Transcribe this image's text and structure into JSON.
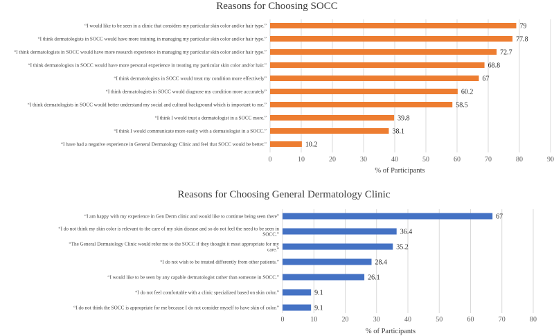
{
  "chart_data": [
    {
      "type": "bar",
      "orientation": "horizontal",
      "title": "Reasons for Choosing SOCC",
      "xlabel": "% of Participants",
      "ylabel": "",
      "xlim": [
        0,
        90
      ],
      "ticks": [
        0,
        10,
        20,
        30,
        40,
        50,
        60,
        70,
        80,
        90
      ],
      "grid": true,
      "color": "#ED7D31",
      "categories": [
        "“I would like to be seen in a clinic that considers my particular skin color and/or hair type.”",
        "“I think dermatologists in SOCC would have more training in managing my particular skin color and/or hair type.”",
        "“I think dermatologists in SOCC would have more research experience in managing my particular skin color and/or hair type.”",
        "“I think dermatologists in SOCC would have more personal experience in treating my particular skin color and/or hair.”",
        "“I think dermatologists in SOCC would treat my condition more effectively”",
        "“I think dermatologists in SOCC would diagnose my condition more accurately”",
        "“I think dermatologists in SOCC would better understand my social and cultural background which is important to me.”",
        "“I think I would trust a dermatologist in a SOCC more.”",
        "“I think I would communicate more easily with a dermatologist in a SOCC.”",
        "“I have had a negative experience in General Dermatology Clinic and feel that SOCC would be better.”"
      ],
      "values": [
        79,
        77.8,
        72.7,
        68.8,
        67,
        60.2,
        58.5,
        39.8,
        38.1,
        10.2
      ]
    },
    {
      "type": "bar",
      "orientation": "horizontal",
      "title": "Reasons for Choosing General Dermatology Clinic",
      "xlabel": "% of Participants",
      "ylabel": "",
      "xlim": [
        0,
        80
      ],
      "ticks": [
        0,
        10,
        20,
        30,
        40,
        50,
        60,
        70,
        80
      ],
      "grid": true,
      "color": "#4472C4",
      "categories": [
        [
          "“I am happy with my experience in Gen Derm clinic and would like to continue being seen there”"
        ],
        [
          "“I do not think my skin color is relevant to the care of my skin disease and so do not feel the need to be seen in",
          "SOCC.”"
        ],
        [
          "“The General Dermatology Clinic would refer me to the SOCC if they thought it most appropriate for my",
          "care.”"
        ],
        [
          "“I do not wish to be treated differently from other patients.”"
        ],
        [
          "“I would like to be seen by any capable dermatologist rather than someone in SOCC.”"
        ],
        [
          "“I do not feel comfortable with a clinic specialized based on skin color.”"
        ],
        [
          "“I do not think the SOCC is appropriate for me because I do not consider myself to have skin of color.”"
        ]
      ],
      "values": [
        67,
        36.4,
        35.2,
        28.4,
        26.1,
        9.1,
        9.1
      ]
    }
  ]
}
